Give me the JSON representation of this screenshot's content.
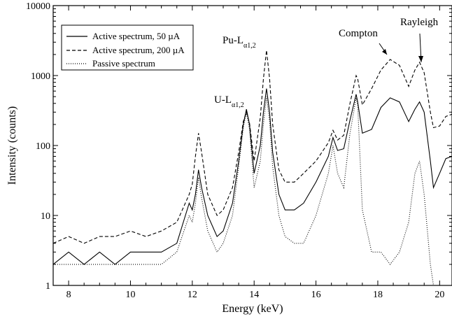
{
  "chart_data": {
    "type": "line",
    "xlabel": "Energy (keV)",
    "ylabel": "Intensity (counts)",
    "xlim": [
      7.5,
      20.4
    ],
    "ylim": [
      1,
      10000
    ],
    "yscale": "log",
    "grid": false,
    "legend_position": "top-left",
    "x_ticks": [
      8,
      10,
      12,
      14,
      16,
      18,
      20
    ],
    "x_tick_labels": [
      "8",
      "10",
      "12",
      "14",
      "16",
      "18",
      "20"
    ],
    "y_ticks": [
      1,
      10,
      100,
      1000,
      10000
    ],
    "y_tick_labels": [
      "1",
      "10",
      "100",
      "1000",
      "10000"
    ],
    "series": [
      {
        "name": "Active spectrum, 50 µA",
        "style": "solid",
        "x": [
          7.5,
          8.0,
          8.5,
          9.0,
          9.5,
          10.0,
          10.5,
          11.0,
          11.5,
          11.9,
          12.0,
          12.1,
          12.2,
          12.3,
          12.5,
          12.8,
          13.0,
          13.3,
          13.5,
          13.65,
          13.75,
          13.85,
          14.0,
          14.2,
          14.3,
          14.4,
          14.5,
          14.6,
          14.8,
          15.0,
          15.3,
          15.6,
          16.0,
          16.4,
          16.55,
          16.7,
          16.9,
          17.1,
          17.3,
          17.35,
          17.5,
          17.8,
          18.1,
          18.4,
          18.7,
          19.0,
          19.2,
          19.35,
          19.5,
          19.7,
          19.8,
          20.0,
          20.2,
          20.4
        ],
        "y": [
          2,
          3,
          2,
          3,
          2,
          3,
          3,
          3,
          4,
          15,
          12,
          20,
          45,
          25,
          10,
          5,
          6,
          15,
          60,
          200,
          330,
          200,
          40,
          100,
          300,
          650,
          300,
          80,
          20,
          12,
          12,
          15,
          30,
          70,
          130,
          85,
          90,
          230,
          540,
          420,
          150,
          170,
          350,
          480,
          420,
          220,
          330,
          420,
          300,
          60,
          25,
          40,
          65,
          70
        ]
      },
      {
        "name": "Active spectrum, 200 µA",
        "style": "dashed",
        "x": [
          7.5,
          8.0,
          8.5,
          9.0,
          9.5,
          10.0,
          10.5,
          11.0,
          11.5,
          11.9,
          12.0,
          12.1,
          12.2,
          12.3,
          12.5,
          12.8,
          13.0,
          13.3,
          13.5,
          13.65,
          13.75,
          13.85,
          14.0,
          14.2,
          14.3,
          14.4,
          14.5,
          14.6,
          14.8,
          15.0,
          15.3,
          15.6,
          16.0,
          16.4,
          16.55,
          16.7,
          16.9,
          17.1,
          17.3,
          17.35,
          17.5,
          17.8,
          18.1,
          18.4,
          18.7,
          19.0,
          19.2,
          19.35,
          19.5,
          19.7,
          19.8,
          20.0,
          20.2,
          20.4
        ],
        "y": [
          4,
          5,
          4,
          5,
          5,
          6,
          5,
          6,
          8,
          20,
          28,
          70,
          150,
          80,
          20,
          10,
          12,
          25,
          80,
          220,
          300,
          210,
          60,
          250,
          900,
          2300,
          900,
          200,
          45,
          30,
          30,
          40,
          60,
          110,
          165,
          120,
          140,
          400,
          1000,
          900,
          380,
          650,
          1200,
          1700,
          1400,
          700,
          1200,
          1550,
          1100,
          300,
          180,
          190,
          260,
          280
        ]
      },
      {
        "name": "Passive spectrum",
        "style": "dotted",
        "x": [
          7.5,
          8.0,
          8.5,
          9.0,
          9.5,
          10.0,
          10.5,
          11.0,
          11.5,
          11.9,
          12.0,
          12.1,
          12.2,
          12.3,
          12.5,
          12.8,
          13.0,
          13.3,
          13.5,
          13.65,
          13.75,
          13.85,
          14.0,
          14.2,
          14.3,
          14.4,
          14.5,
          14.6,
          14.8,
          15.0,
          15.3,
          15.6,
          16.0,
          16.4,
          16.55,
          16.7,
          16.9,
          17.1,
          17.3,
          17.35,
          17.5,
          17.8,
          18.1,
          18.4,
          18.7,
          19.0,
          19.2,
          19.35,
          19.5,
          19.7,
          19.8,
          20.0,
          20.2,
          20.4
        ],
        "y": [
          2,
          2,
          2,
          2,
          2,
          2,
          2,
          2,
          3,
          10,
          8,
          15,
          35,
          18,
          6,
          3,
          4,
          10,
          50,
          180,
          300,
          170,
          25,
          60,
          200,
          500,
          220,
          50,
          10,
          5,
          4,
          4,
          10,
          40,
          100,
          40,
          25,
          150,
          480,
          380,
          12,
          3,
          3,
          2,
          3,
          8,
          40,
          60,
          20,
          2,
          1,
          1,
          1,
          1
        ]
      }
    ],
    "annotations": [
      {
        "text": "Pu-L",
        "subscript": "α1,2",
        "x": 14.4,
        "y": 2300
      },
      {
        "text": "U-L",
        "subscript": "α1,2",
        "x": 13.75,
        "y": 330
      },
      {
        "text": "Compton",
        "x": 18.4,
        "y": 1700
      },
      {
        "text": "Rayleigh",
        "x": 19.35,
        "y": 1550
      }
    ]
  }
}
